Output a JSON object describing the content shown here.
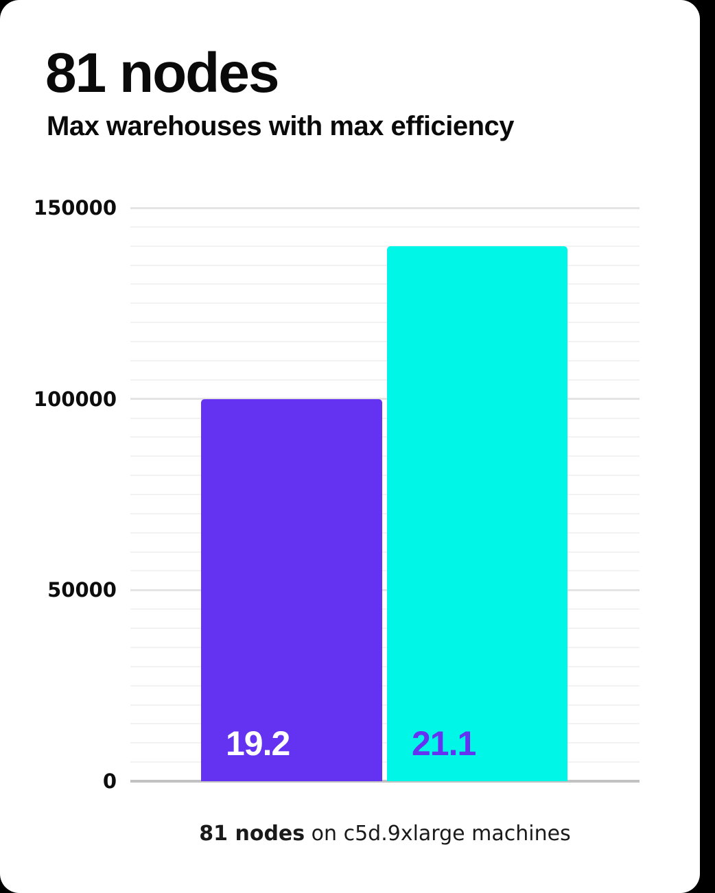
{
  "background_color": "#000000",
  "card_color": "#ffffff",
  "header": {
    "title": "81 nodes",
    "subtitle": "Max warehouses with max efficiency"
  },
  "caption": {
    "bold": "81 nodes",
    "rest": " on c5d.9xlarge machines"
  },
  "chart_data": {
    "type": "bar",
    "title": "81 nodes",
    "subtitle": "Max warehouses with max efficiency",
    "categories": [
      "19.2",
      "21.1"
    ],
    "values": [
      100000,
      140000
    ],
    "bar_labels": [
      "19.2",
      "21.1"
    ],
    "bar_colors": [
      "#6433f1",
      "#00f7e7"
    ],
    "bar_label_colors": [
      "#ffffff",
      "#6433f1"
    ],
    "xlabel": "",
    "ylabel": "",
    "ylim": [
      0,
      150000
    ],
    "yticks": [
      "0",
      "50000",
      "100000",
      "150000"
    ],
    "ytick_values": [
      0,
      50000,
      100000,
      150000
    ],
    "minor_grid_step": 5000,
    "grid": true,
    "legend": false,
    "caption": "81 nodes on c5d.9xlarge machines",
    "axis_color": "#c2c2c2",
    "gridline_minor_color": "#f2f2f2",
    "gridline_major_color": "#e4e4e4"
  }
}
